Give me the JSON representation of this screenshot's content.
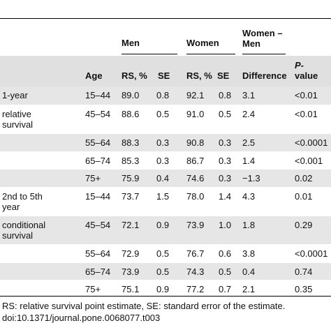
{
  "table": {
    "header": {
      "group_men": "Men",
      "group_women": "Women",
      "group_diff_line1": "Women –",
      "group_diff_line2": "Men",
      "col_age": "Age",
      "col_rs_men": "RS, %",
      "col_se_men": "SE",
      "col_rs_women": "RS, %",
      "col_se_women": "SE",
      "col_difference": "Difference",
      "col_pvalue_line1": "P-",
      "col_pvalue_line2": "value"
    },
    "rows": [
      {
        "label": "1-year",
        "age": "15–44",
        "rs_men": "89.0",
        "se_men": "0.8",
        "rs_women": "92.1",
        "se_women": "0.8",
        "diff": "3.1",
        "p": "<0.01"
      },
      {
        "label": "relative survival",
        "age": "45–54",
        "rs_men": "88.6",
        "se_men": "0.5",
        "rs_women": "91.0",
        "se_women": "0.5",
        "diff": "2.4",
        "p": "<0.01"
      },
      {
        "label": "",
        "age": "55–64",
        "rs_men": "88.3",
        "se_men": "0.3",
        "rs_women": "90.8",
        "se_women": "0.3",
        "diff": "2.5",
        "p": "<0.0001"
      },
      {
        "label": "",
        "age": "65–74",
        "rs_men": "85.3",
        "se_men": "0.3",
        "rs_women": "86.7",
        "se_women": "0.3",
        "diff": "1.4",
        "p": "<0.001"
      },
      {
        "label": "",
        "age": "75+",
        "rs_men": "75.9",
        "se_men": "0.4",
        "rs_women": "74.6",
        "se_women": "0.3",
        "diff": "−1.3",
        "p": "0.02"
      },
      {
        "label": "2nd to 5th year",
        "age": "15–44",
        "rs_men": "73.7",
        "se_men": "1.5",
        "rs_women": "78.0",
        "se_women": "1.4",
        "diff": "4.3",
        "p": "0.01"
      },
      {
        "label": "conditional survival",
        "age": "45–54",
        "rs_men": "72.1",
        "se_men": "0.9",
        "rs_women": "73.9",
        "se_women": "1.0",
        "diff": "1.8",
        "p": "0.29"
      },
      {
        "label": "",
        "age": "55–64",
        "rs_men": "72.9",
        "se_men": "0.5",
        "rs_women": "76.7",
        "se_women": "0.6",
        "diff": "3.8",
        "p": "<0.0001"
      },
      {
        "label": "",
        "age": "65–74",
        "rs_men": "73.9",
        "se_men": "0.5",
        "rs_women": "74.3",
        "se_women": "0.5",
        "diff": "0.4",
        "p": "0.74"
      },
      {
        "label": "",
        "age": "75+",
        "rs_men": "75.1",
        "se_men": "0.9",
        "rs_women": "77.2",
        "se_women": "0.7",
        "diff": "2.1",
        "p": "0.35"
      }
    ]
  },
  "footnote": {
    "line1": "RS: relative survival point estimate, SE: standard error of the estimate.",
    "line2": "doi:10.1371/journal.pone.0068077.t003"
  }
}
